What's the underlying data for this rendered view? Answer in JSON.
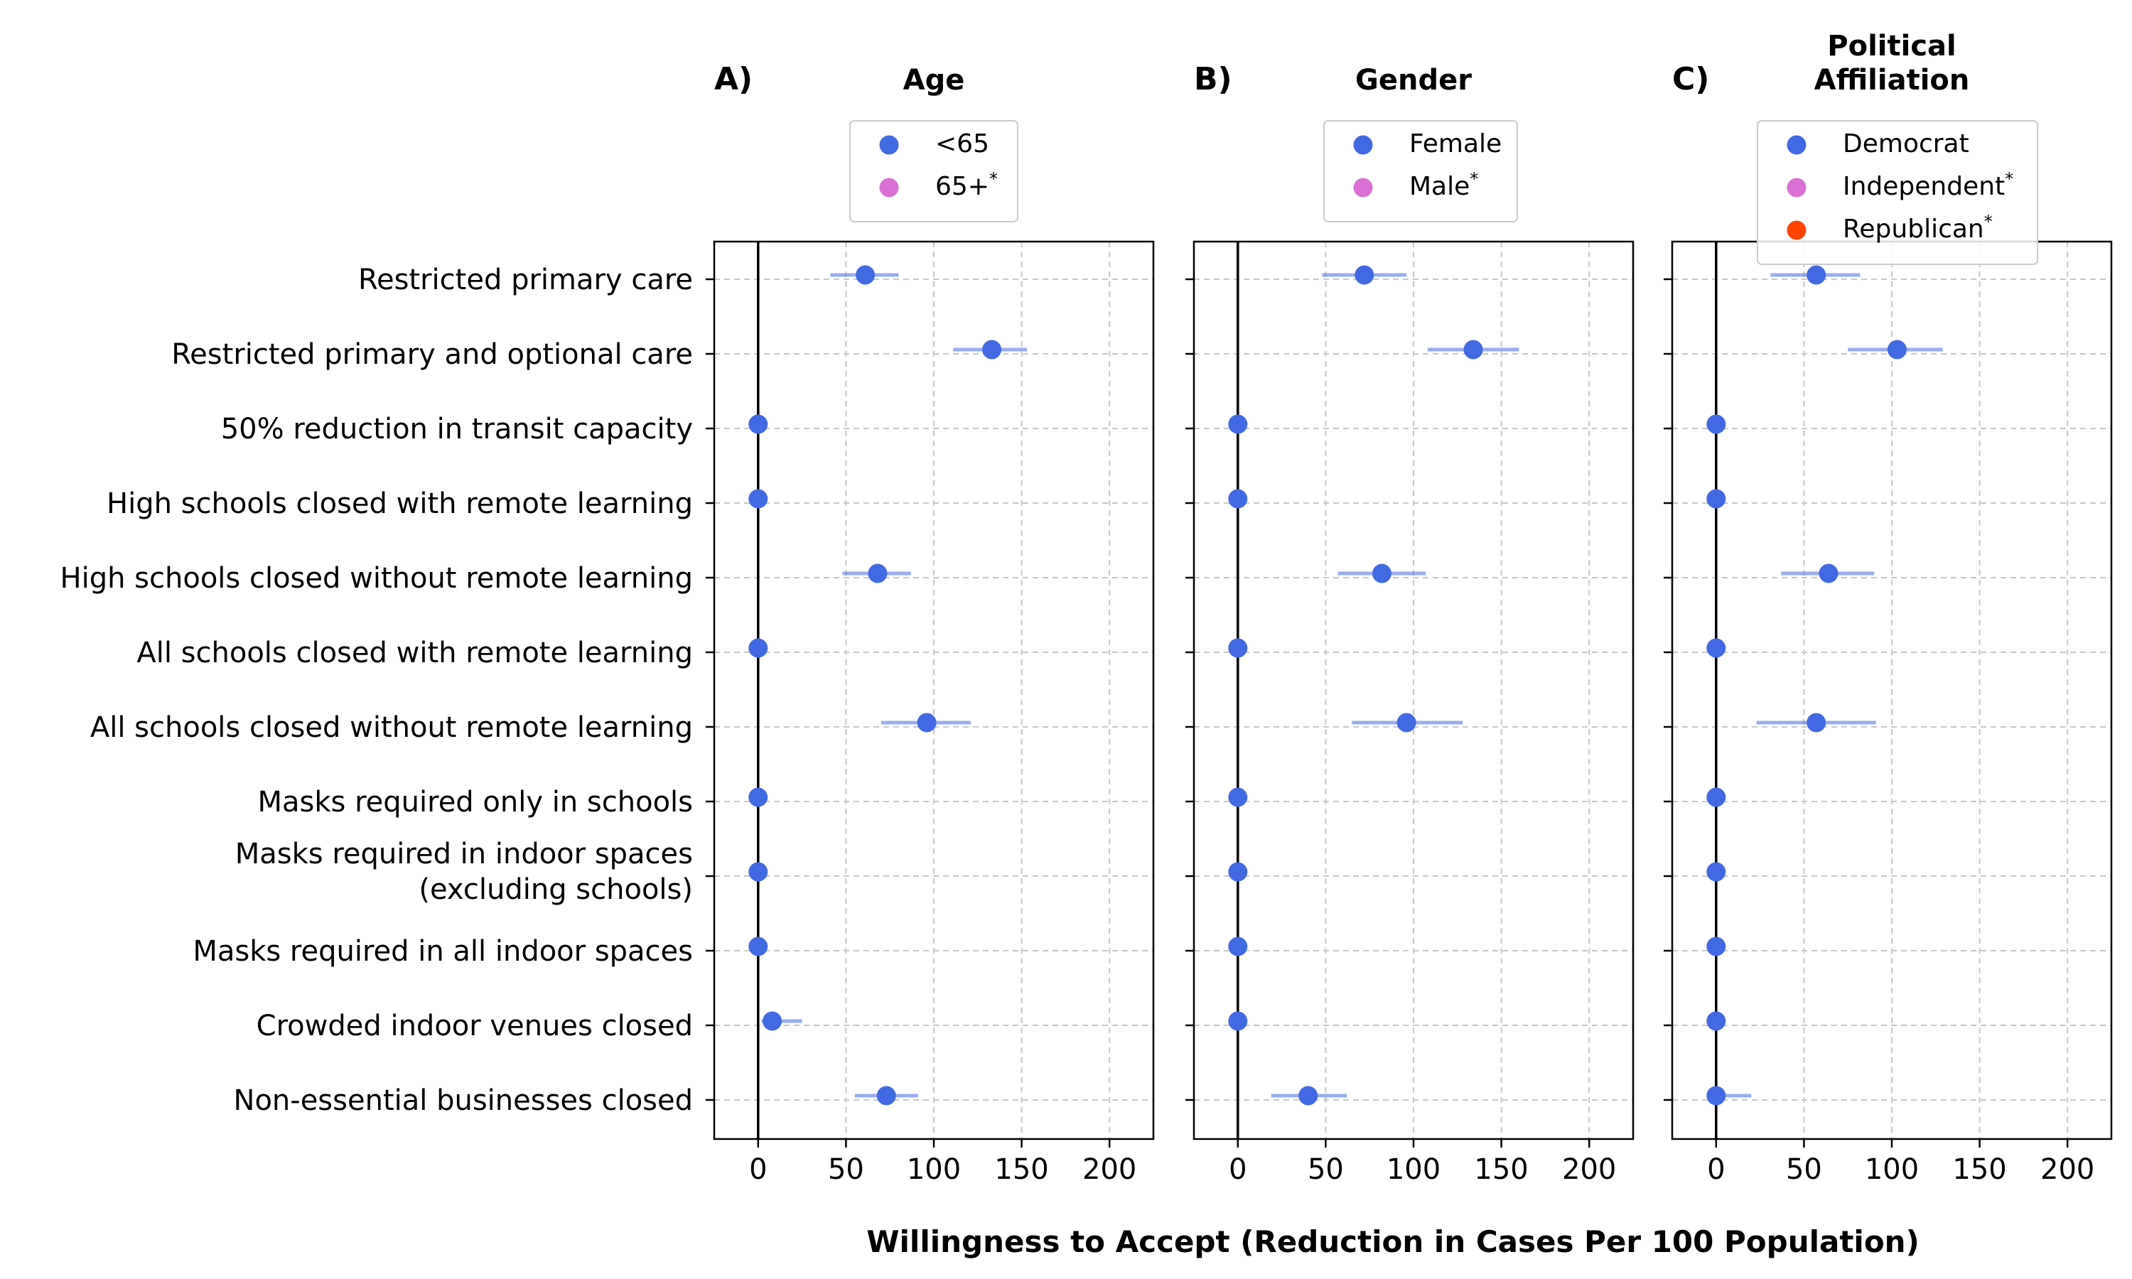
{
  "chart_data": {
    "type": "scatter",
    "xlabel": "Willingness to Accept (Reduction in Cases Per 100 Population)",
    "xlim": [
      -25,
      225
    ],
    "xticks": [
      0,
      50,
      100,
      150,
      200
    ],
    "grid": true,
    "categories": [
      "Restricted primary care",
      "Restricted primary and optional care",
      "50% reduction in transit capacity",
      "High schools closed with remote learning",
      "High schools closed without remote learning",
      "All schools closed with remote learning",
      "All schools closed without remote learning",
      "Masks required only in schools",
      [
        "Masks required in indoor spaces",
        "(excluding schools)"
      ],
      "Masks required in all indoor spaces",
      "Crowded indoor venues closed",
      "Non-essential businesses closed"
    ],
    "panels": [
      {
        "letter": "A)",
        "title": [
          "Age"
        ],
        "legend": [
          {
            "name": "<65",
            "star": "",
            "color": "#4169e1"
          },
          {
            "name": "65+",
            "star": "*",
            "color": "#da70d6"
          }
        ],
        "series": [
          {
            "name": "<65",
            "values": [
              61,
              133,
              0,
              0,
              68,
              0,
              96,
              0,
              0,
              0,
              8,
              73
            ],
            "ci_low": [
              41,
              111,
              null,
              null,
              48,
              null,
              70,
              null,
              null,
              null,
              2,
              55
            ],
            "ci_high": [
              80,
              153,
              null,
              null,
              87,
              null,
              121,
              null,
              null,
              null,
              25,
              91
            ]
          }
        ]
      },
      {
        "letter": "B)",
        "title": [
          "Gender"
        ],
        "legend": [
          {
            "name": "Female",
            "star": "",
            "color": "#4169e1"
          },
          {
            "name": "Male",
            "star": "*",
            "color": "#da70d6"
          }
        ],
        "series": [
          {
            "name": "Female",
            "values": [
              72,
              134,
              0,
              0,
              82,
              0,
              96,
              0,
              0,
              0,
              0,
              40
            ],
            "ci_low": [
              48,
              108,
              null,
              null,
              57,
              null,
              65,
              null,
              null,
              null,
              null,
              19
            ],
            "ci_high": [
              96,
              160,
              null,
              null,
              107,
              null,
              128,
              null,
              null,
              null,
              null,
              62
            ]
          }
        ]
      },
      {
        "letter": "C)",
        "title": [
          "Political",
          "Affiliation"
        ],
        "legend": [
          {
            "name": "Democrat",
            "star": "",
            "color": "#4169e1"
          },
          {
            "name": "Independent",
            "star": "*",
            "color": "#da70d6"
          },
          {
            "name": "Republican",
            "star": "*",
            "color": "#ff4500"
          }
        ],
        "series": [
          {
            "name": "Democrat",
            "values": [
              57,
              103,
              0,
              0,
              64,
              0,
              57,
              0,
              0,
              0,
              0,
              0
            ],
            "ci_low": [
              31,
              75,
              null,
              null,
              37,
              null,
              23,
              null,
              null,
              null,
              null,
              0
            ],
            "ci_high": [
              82,
              129,
              null,
              null,
              90,
              null,
              91,
              null,
              null,
              null,
              null,
              20
            ]
          }
        ]
      }
    ]
  }
}
